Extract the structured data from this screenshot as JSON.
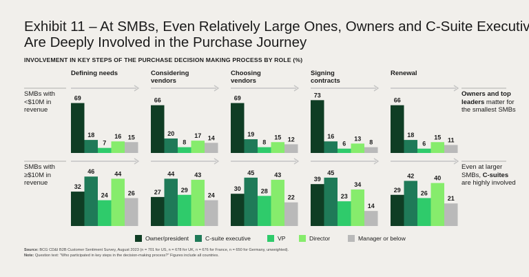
{
  "chart_data": {
    "type": "bar",
    "title": [
      "Exhibit 11 – At SMBs, Even Relatively Large Ones, Owners and C-Suite Executives",
      "Are Deeply Involved in the Purchase Journey"
    ],
    "subtitle": "INVOLVEMENT IN KEY STEPS OF THE PURCHASE DECISION MAKING PROCESS BY ROLE (%)",
    "categories": [
      "Defining needs",
      "Considering vendors",
      "Choosing vendors",
      "Signing contracts",
      "Renewal"
    ],
    "rows": [
      {
        "label": "SMBs with <$10M in revenue",
        "annotation": [
          {
            "text": "Owners and top leaders",
            "bold": true
          },
          {
            "text": "matter for the smallest SMBs",
            "bold": false
          }
        ]
      },
      {
        "label": "SMBs with ≥$10M in revenue",
        "annotation": [
          {
            "text": "Even at larger SMBs,",
            "bold": false
          },
          {
            "text": "C-suites",
            "bold": true
          },
          {
            "text": "are highly involved",
            "bold": false
          }
        ]
      }
    ],
    "series": [
      {
        "name": "Owner/president",
        "color": "#0f3d24",
        "values": [
          [
            69,
            66,
            69,
            73,
            66
          ],
          [
            32,
            27,
            30,
            39,
            29
          ]
        ]
      },
      {
        "name": "C-suite executive",
        "color": "#1f7a58",
        "values": [
          [
            18,
            20,
            19,
            16,
            18
          ],
          [
            46,
            44,
            45,
            45,
            42
          ]
        ]
      },
      {
        "name": "VP",
        "color": "#2fcb6b",
        "values": [
          [
            7,
            8,
            8,
            6,
            6
          ],
          [
            24,
            29,
            28,
            23,
            26
          ]
        ]
      },
      {
        "name": "Director",
        "color": "#86ec6c",
        "values": [
          [
            16,
            17,
            15,
            13,
            15
          ],
          [
            44,
            43,
            43,
            34,
            40
          ]
        ]
      },
      {
        "name": "Manager or below",
        "color": "#b9b9b9",
        "values": [
          [
            15,
            14,
            12,
            8,
            11
          ],
          [
            26,
            24,
            22,
            14,
            21
          ]
        ]
      }
    ],
    "source": {
      "label": "Source:",
      "text": "BCG CD&I B2B Customer Sentiment Survey, August 2023 (n = 701 for US, n = 678 for UK, n = 676 for France, n = 650 for Germany, unweighted)."
    },
    "note": {
      "label": "Note:",
      "text": "Question text: \"Who participated in key steps in the decision-making process?\" Figures include all countries."
    }
  }
}
